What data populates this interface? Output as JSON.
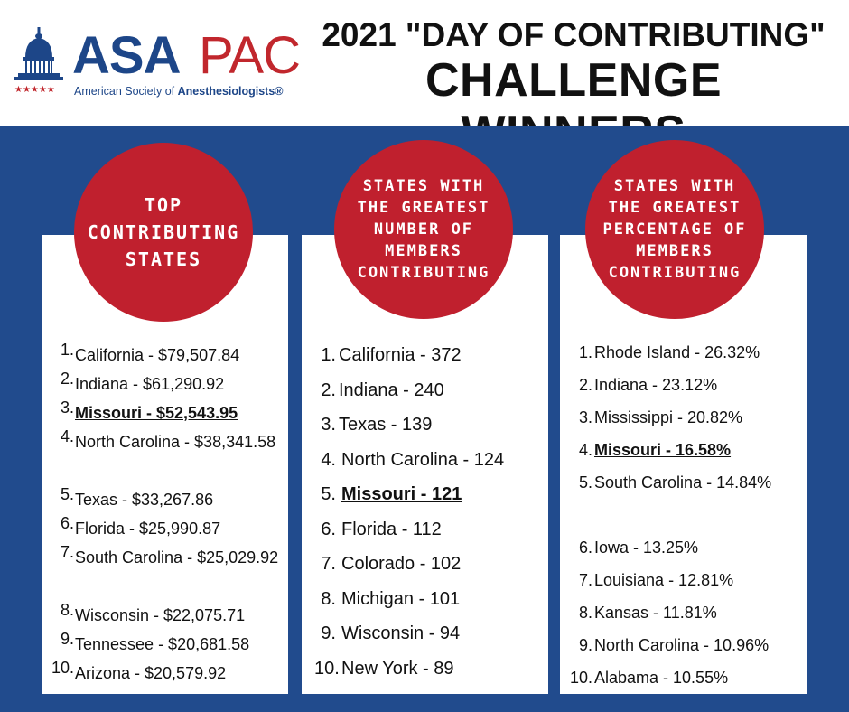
{
  "header": {
    "logo": {
      "asa": "ASA",
      "pac": "PAC",
      "subtitle_prefix": "American Society of ",
      "subtitle_bold": "Anesthesiologists®",
      "brand_blue": "#1d4688",
      "brand_red": "#c1272d"
    },
    "title_line1": "2021 \"DAY OF CONTRIBUTING\"",
    "title_line2": "CHALLENGE WINNERS"
  },
  "colors": {
    "band": "#214b8d",
    "circle": "#c0202e",
    "card": "#ffffff"
  },
  "columns": [
    {
      "heading": [
        "TOP",
        "CONTRIBUTING",
        "STATES"
      ],
      "items": [
        {
          "num": "1.",
          "text": "California - $79,507.84"
        },
        {
          "num": "2.",
          "text": "Indiana - $61,290.92"
        },
        {
          "num": "3.",
          "text": "Missouri - $52,543.95",
          "highlight": true
        },
        {
          "num": "4.",
          "text": "North Carolina - $38,341.58"
        },
        {
          "num": "5.",
          "text": "Texas - $33,267.86"
        },
        {
          "num": "6.",
          "text": "Florida - $25,990.87"
        },
        {
          "num": "7.",
          "text": "South Carolina - $25,029.92"
        },
        {
          "num": "8.",
          "text": "Wisconsin - $22,075.71"
        },
        {
          "num": "9.",
          "text": "Tennessee - $20,681.58"
        },
        {
          "num": "10.",
          "text": "Arizona - $20,579.92"
        }
      ]
    },
    {
      "heading": [
        "STATES WITH",
        "THE GREATEST",
        "NUMBER OF",
        "MEMBERS",
        "CONTRIBUTING"
      ],
      "items": [
        {
          "num": "1.",
          "text": "California - 372"
        },
        {
          "num": "2.",
          "text": "Indiana - 240"
        },
        {
          "num": "3.",
          "text": "Texas - 139"
        },
        {
          "num": "4.",
          "text": "North Carolina - 124"
        },
        {
          "num": "5.",
          "text": "Missouri - 121",
          "highlight": true
        },
        {
          "num": "6.",
          "text": "Florida - 112"
        },
        {
          "num": "7.",
          "text": "Colorado - 102"
        },
        {
          "num": "8.",
          "text": "Michigan - 101"
        },
        {
          "num": "9.",
          "text": "Wisconsin - 94"
        },
        {
          "num": "10.",
          "text": "New York - 89"
        }
      ]
    },
    {
      "heading": [
        "STATES WITH",
        "THE GREATEST",
        "PERCENTAGE OF",
        "MEMBERS",
        "CONTRIBUTING"
      ],
      "items": [
        {
          "num": "1.",
          "text": "Rhode Island - 26.32%"
        },
        {
          "num": "2.",
          "text": "Indiana - 23.12%"
        },
        {
          "num": "3.",
          "text": "Mississippi - 20.82%"
        },
        {
          "num": "4.",
          "text": "Missouri - 16.58%",
          "highlight": true
        },
        {
          "num": "5.",
          "text": "South Carolina - 14.84%"
        },
        {
          "num": "6.",
          "text": "Iowa - 13.25%"
        },
        {
          "num": "7.",
          "text": "Louisiana - 12.81%"
        },
        {
          "num": "8.",
          "text": "Kansas - 11.81%"
        },
        {
          "num": "9.",
          "text": "North Carolina - 10.96%"
        },
        {
          "num": "10.",
          "text": "Alabama - 10.55%"
        }
      ]
    }
  ]
}
